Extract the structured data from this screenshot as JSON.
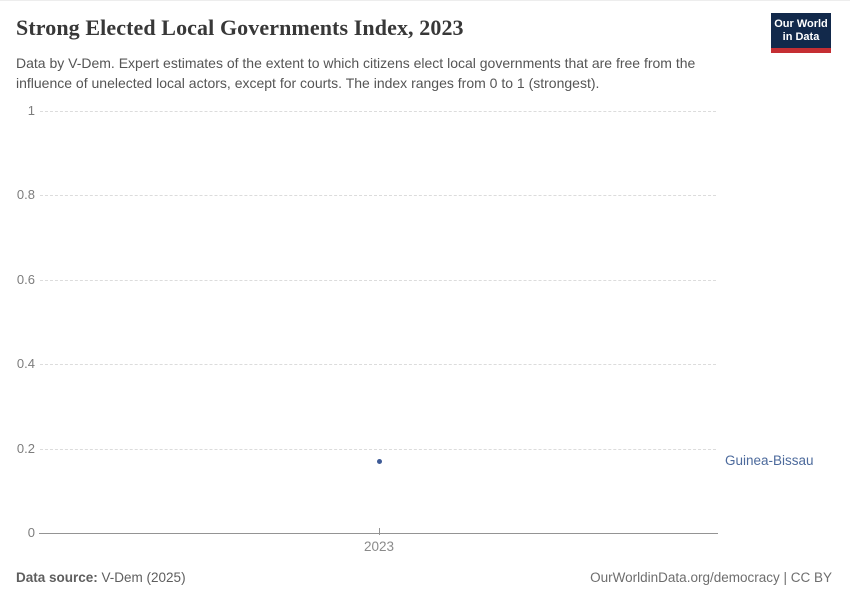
{
  "header": {
    "title": "Strong Elected Local Governments Index, 2023",
    "subtitle": "Data by V-Dem. Expert estimates of the extent to which citizens elect local governments that are free from the influence of unelected local actors, except for courts. The index ranges from 0 to 1 (strongest).",
    "logo": {
      "line1": "Our World",
      "line2": "in Data"
    }
  },
  "chart_data": {
    "type": "scatter",
    "title": "Strong Elected Local Governments Index, 2023",
    "x": [
      2023
    ],
    "xticks": [
      2023
    ],
    "series": [
      {
        "name": "Guinea-Bissau",
        "values": [
          0.17
        ],
        "color": "#3d5a96",
        "label_color": "#4c6a9c"
      }
    ],
    "xlabel": "",
    "ylabel": "",
    "ylim": [
      0,
      1
    ],
    "yticks": [
      0,
      0.2,
      0.4,
      0.6,
      0.8,
      1
    ],
    "grid": "horizontal-dashed",
    "legend_position": "right-of-point-label"
  },
  "footer": {
    "source_label": "Data source:",
    "source_value": " V-Dem (2025)",
    "credit": "OurWorldinData.org/democracy | CC BY"
  },
  "colors": {
    "point_blue": "#3d5a96",
    "entity_label_blue": "#4c6a9c",
    "logo_navy": "#12294b",
    "logo_red": "#c52e33",
    "gridline": "#dcdcdc",
    "axis": "#949494"
  }
}
